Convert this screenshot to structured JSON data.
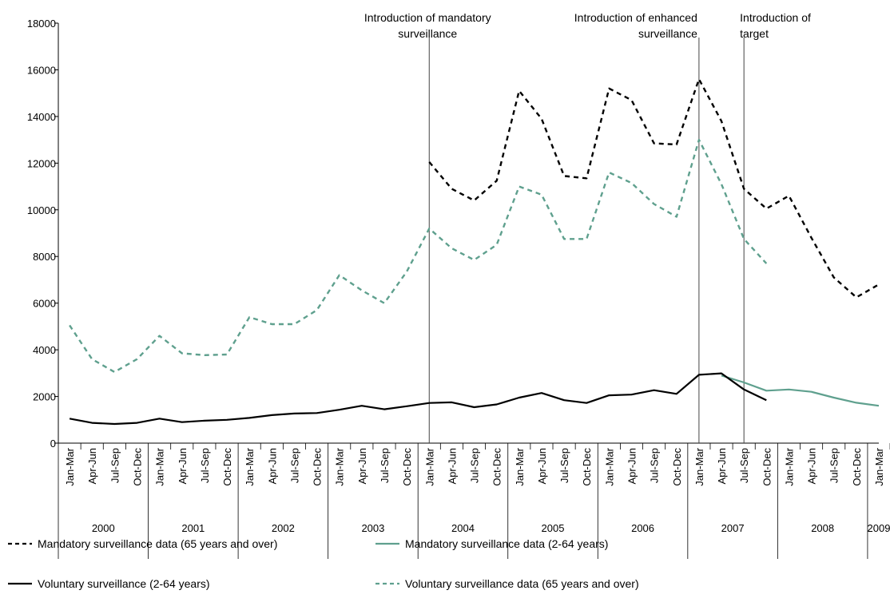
{
  "chart_data": {
    "type": "line",
    "ylim": [
      0,
      18000
    ],
    "yticks": [
      0,
      2000,
      4000,
      6000,
      8000,
      10000,
      12000,
      14000,
      16000,
      18000
    ],
    "quarter_labels": [
      "Jan-Mar",
      "Apr-Jun",
      "Jul-Sep",
      "Oct-Dec"
    ],
    "years": [
      "2000",
      "2001",
      "2002",
      "2003",
      "2004",
      "2005",
      "2006",
      "2007",
      "2008",
      "2009"
    ],
    "x": [
      "Jan-Mar 2000",
      "Apr-Jun 2000",
      "Jul-Sep 2000",
      "Oct-Dec 2000",
      "Jan-Mar 2001",
      "Apr-Jun 2001",
      "Jul-Sep 2001",
      "Oct-Dec 2001",
      "Jan-Mar 2002",
      "Apr-Jun 2002",
      "Jul-Sep 2002",
      "Oct-Dec 2002",
      "Jan-Mar 2003",
      "Apr-Jun 2003",
      "Jul-Sep 2003",
      "Oct-Dec 2003",
      "Jan-Mar 2004",
      "Apr-Jun 2004",
      "Jul-Sep 2004",
      "Oct-Dec 2004",
      "Jan-Mar 2005",
      "Apr-Jun 2005",
      "Jul-Sep 2005",
      "Oct-Dec 2005",
      "Jan-Mar 2006",
      "Apr-Jun 2006",
      "Jul-Sep 2006",
      "Oct-Dec 2006",
      "Jan-Mar 2007",
      "Apr-Jun 2007",
      "Jul-Sep 2007",
      "Oct-Dec 2007",
      "Jan-Mar 2008",
      "Apr-Jun 2008",
      "Jul-Sep 2008",
      "Oct-Dec 2008",
      "Jan-Mar 2009"
    ],
    "series": [
      {
        "name": "Mandatory surveillance data (65 years and over)",
        "color": "#000000",
        "dash": true,
        "values": [
          null,
          null,
          null,
          null,
          null,
          null,
          null,
          null,
          null,
          null,
          null,
          null,
          null,
          null,
          null,
          null,
          12050,
          10900,
          10400,
          11250,
          15100,
          13900,
          11450,
          11350,
          15200,
          14700,
          12850,
          12800,
          15600,
          13800,
          10900,
          10050,
          10600,
          8800,
          7100,
          6250,
          6800
        ]
      },
      {
        "name": "Mandatory surveillance data (2-64 years)",
        "color": "#5fa08e",
        "dash": false,
        "values": [
          null,
          null,
          null,
          null,
          null,
          null,
          null,
          null,
          null,
          null,
          null,
          null,
          null,
          null,
          null,
          null,
          null,
          null,
          null,
          null,
          null,
          null,
          null,
          null,
          null,
          null,
          null,
          null,
          null,
          2900,
          2600,
          2250,
          2300,
          2200,
          1950,
          1730,
          1600
        ]
      },
      {
        "name": "Voluntary surveillance (2-64 years)",
        "color": "#000000",
        "dash": false,
        "values": [
          1050,
          870,
          820,
          870,
          1050,
          900,
          960,
          1000,
          1080,
          1200,
          1270,
          1290,
          1430,
          1600,
          1450,
          1580,
          1720,
          1750,
          1540,
          1660,
          1950,
          2150,
          1840,
          1720,
          2050,
          2080,
          2270,
          2110,
          2930,
          2990,
          2300,
          1840,
          null,
          null,
          null,
          null,
          null
        ]
      },
      {
        "name": "Voluntary surveillance data (65 years and over)",
        "color": "#5fa08e",
        "dash": true,
        "values": [
          5050,
          3600,
          3050,
          3600,
          4600,
          3850,
          3770,
          3800,
          5400,
          5100,
          5100,
          5700,
          7200,
          6550,
          6000,
          7350,
          9200,
          8350,
          7850,
          8500,
          11000,
          10650,
          8750,
          8750,
          11600,
          11150,
          10250,
          9700,
          13000,
          11100,
          8750,
          7700,
          null,
          null,
          null,
          null,
          null
        ]
      }
    ],
    "annotations": [
      {
        "lines": [
          "Introduction of mandatory",
          "surveillance"
        ],
        "after_index": 16
      },
      {
        "lines": [
          "Introduction of enhanced",
          "surveillance"
        ],
        "after_index": 28
      },
      {
        "lines": [
          "Introduction of",
          "target"
        ],
        "after_index": 30
      }
    ],
    "legend": {
      "position": "bottom",
      "columns": 2
    }
  }
}
